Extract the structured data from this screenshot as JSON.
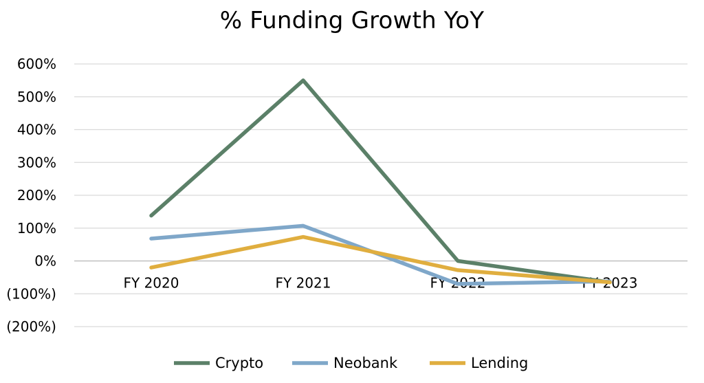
{
  "chart_data": {
    "type": "line",
    "title": "% Funding Growth YoY",
    "categories": [
      "FY 2020",
      "FY 2021",
      "FY 2022",
      "FY 2023"
    ],
    "ylim": [
      -200,
      600
    ],
    "yticks": [
      600,
      500,
      400,
      300,
      200,
      100,
      0,
      -100,
      -200
    ],
    "ytick_labels": [
      "600%",
      "500%",
      "400%",
      "300%",
      "200%",
      "100%",
      "0%",
      "(100%)",
      "(200%)"
    ],
    "grid": true,
    "legend_position": "bottom",
    "series": [
      {
        "name": "Crypto",
        "color": "#5b8068",
        "values": [
          138,
          550,
          0,
          -65
        ]
      },
      {
        "name": "Neobank",
        "color": "#7fa7c9",
        "values": [
          68,
          107,
          -70,
          -62
        ]
      },
      {
        "name": "Lending",
        "color": "#e0ae3f",
        "values": [
          -20,
          73,
          -28,
          -65
        ]
      }
    ]
  }
}
